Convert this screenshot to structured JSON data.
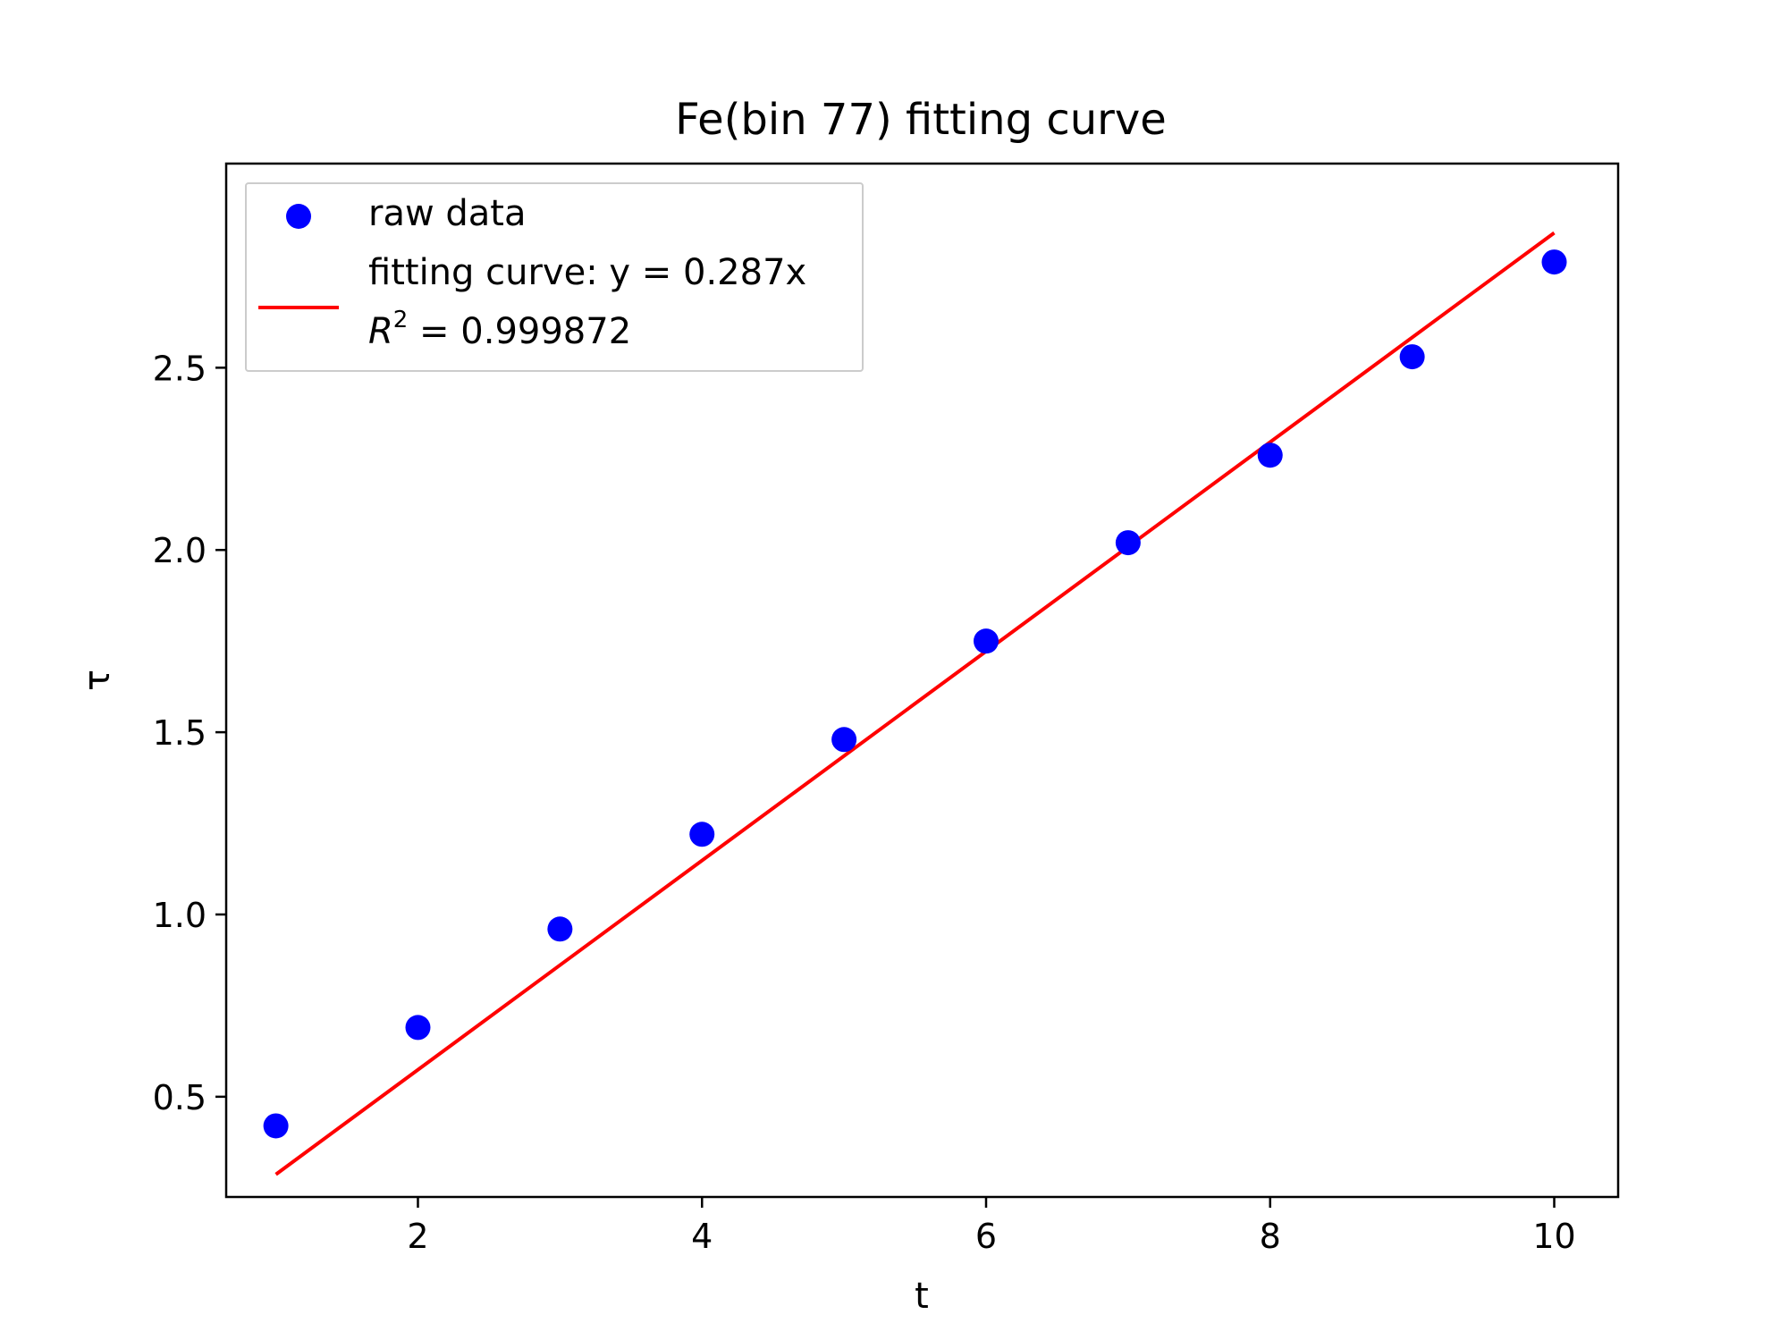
{
  "chart_data": {
    "type": "scatter",
    "title": "Fe(bin 77) fitting curve",
    "xlabel": "t",
    "ylabel": "τ",
    "xlim": [
      0.65,
      10.45
    ],
    "ylim": [
      0.225,
      3.06
    ],
    "xticks": [
      2,
      4,
      6,
      8,
      10
    ],
    "xtick_labels": [
      "2",
      "4",
      "6",
      "8",
      "10"
    ],
    "yticks": [
      0.5,
      1.0,
      1.5,
      2.0,
      2.5
    ],
    "ytick_labels": [
      "0.5",
      "1.0",
      "1.5",
      "2.0",
      "2.5"
    ],
    "grid": false,
    "legend_position": "top-left",
    "series": [
      {
        "name": "raw data",
        "kind": "scatter",
        "color": "#0000ff",
        "x": [
          1,
          2,
          3,
          4,
          5,
          6,
          7,
          8,
          9,
          10
        ],
        "y": [
          0.42,
          0.69,
          0.96,
          1.22,
          1.48,
          1.75,
          2.02,
          2.26,
          2.53,
          2.79
        ]
      },
      {
        "name": "fitting curve: y = 0.287x",
        "kind": "line",
        "color": "#ff0000",
        "slope": 0.287,
        "x": [
          1,
          10
        ],
        "y": [
          0.287,
          2.87
        ]
      }
    ],
    "legend": {
      "entries": [
        {
          "label": "raw data",
          "marker": "dot",
          "color": "#0000ff"
        },
        {
          "label": "fitting curve: y = 0.287x",
          "marker": "line",
          "color": "#ff0000"
        }
      ],
      "r2_prefix": "R",
      "r2_exponent": "2",
      "r2_value": " = 0.999872"
    }
  }
}
